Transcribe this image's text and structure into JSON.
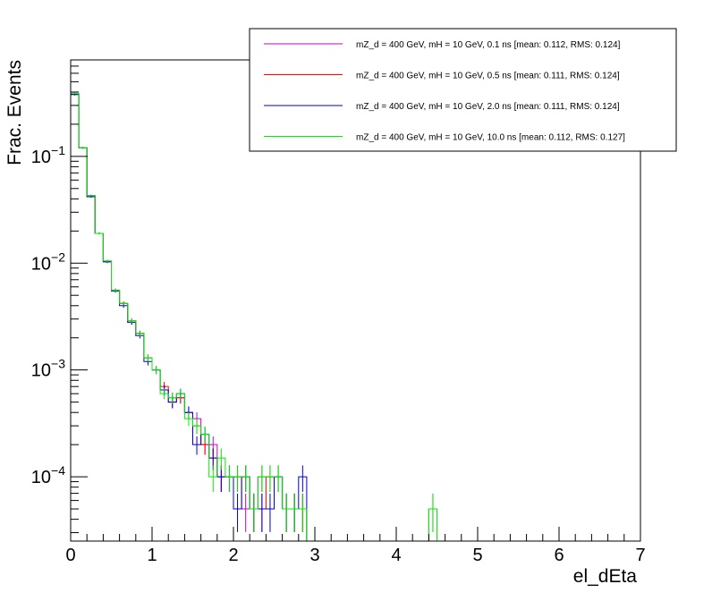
{
  "chart_data": {
    "type": "histogram",
    "xlabel": "el_dEta",
    "ylabel": "Frac. Events",
    "xlim": [
      0,
      7
    ],
    "ylim": [
      2.5e-05,
      0.8
    ],
    "y_scale": "log",
    "x_ticks": [
      "0",
      "1",
      "2",
      "3",
      "4",
      "5",
      "6",
      "7"
    ],
    "y_ticks": [
      {
        "value": 0.0001,
        "base": "10",
        "exp": "−4"
      },
      {
        "value": 0.001,
        "base": "10",
        "exp": "−3"
      },
      {
        "value": 0.01,
        "base": "10",
        "exp": "−2"
      },
      {
        "value": 0.1,
        "base": "10",
        "exp": "−1"
      }
    ],
    "bin_width": 0.1,
    "legend_position": "top-right",
    "series": [
      {
        "name": "mZ_d = 400 GeV, mH = 10 GeV, 0.1 ns [mean: 0.112, RMS: 0.124]",
        "color": "#cc00cc",
        "bins": [
          [
            0.0,
            0.38
          ],
          [
            0.1,
            0.12
          ],
          [
            0.2,
            0.043
          ],
          [
            0.3,
            0.019
          ],
          [
            0.4,
            0.0104
          ],
          [
            0.5,
            0.0056
          ],
          [
            0.6,
            0.0042
          ],
          [
            0.7,
            0.0029
          ],
          [
            0.8,
            0.0022
          ],
          [
            0.9,
            0.0013
          ],
          [
            1.0,
            0.001
          ],
          [
            1.1,
            0.00065
          ],
          [
            1.2,
            0.00055
          ],
          [
            1.3,
            0.00055
          ],
          [
            1.4,
            0.0004
          ],
          [
            1.5,
            0.00035
          ],
          [
            1.6,
            0.0002
          ],
          [
            1.7,
            0.0002
          ],
          [
            1.8,
            0.0001
          ],
          [
            1.9,
            0.0001
          ],
          [
            2.0,
            0.0001
          ],
          [
            2.1,
            5e-05
          ],
          [
            2.2,
            5e-05
          ],
          [
            2.3,
            0.0001
          ],
          [
            2.4,
            0.0001
          ],
          [
            2.5,
            0.0001
          ],
          [
            2.6,
            5e-05
          ],
          [
            2.7,
            5e-05
          ],
          [
            2.8,
            5e-05
          ],
          [
            4.4,
            5e-05
          ]
        ]
      },
      {
        "name": "mZ_d = 400 GeV, mH = 10 GeV, 0.5 ns [mean: 0.111, RMS: 0.124]",
        "color": "#ff0000",
        "bins": [
          [
            0.0,
            0.38
          ],
          [
            0.1,
            0.12
          ],
          [
            0.2,
            0.042
          ],
          [
            0.3,
            0.019
          ],
          [
            0.4,
            0.0103
          ],
          [
            0.5,
            0.0055
          ],
          [
            0.6,
            0.0042
          ],
          [
            0.7,
            0.0028
          ],
          [
            0.8,
            0.0022
          ],
          [
            0.9,
            0.0013
          ],
          [
            1.0,
            0.001
          ],
          [
            1.1,
            0.0007
          ],
          [
            1.2,
            0.0005
          ],
          [
            1.3,
            0.00055
          ],
          [
            1.4,
            0.0004
          ],
          [
            1.5,
            0.0003
          ],
          [
            1.6,
            0.0002
          ],
          [
            1.7,
            0.00015
          ],
          [
            1.8,
            0.0001
          ],
          [
            1.9,
            0.0001
          ],
          [
            2.0,
            0.0001
          ],
          [
            2.1,
            0.0001
          ],
          [
            2.2,
            5e-05
          ],
          [
            2.3,
            5e-05
          ],
          [
            2.4,
            0.0001
          ],
          [
            2.5,
            0.0001
          ],
          [
            2.6,
            5e-05
          ],
          [
            2.7,
            5e-05
          ],
          [
            2.8,
            5e-05
          ]
        ]
      },
      {
        "name": "mZ_d = 400 GeV, mH = 10 GeV, 2.0 ns [mean: 0.111, RMS: 0.124]",
        "color": "#0000cc",
        "bins": [
          [
            0.0,
            0.38
          ],
          [
            0.1,
            0.12
          ],
          [
            0.2,
            0.042
          ],
          [
            0.3,
            0.019
          ],
          [
            0.4,
            0.0103
          ],
          [
            0.5,
            0.0055
          ],
          [
            0.6,
            0.004
          ],
          [
            0.7,
            0.0028
          ],
          [
            0.8,
            0.0021
          ],
          [
            0.9,
            0.0012
          ],
          [
            1.0,
            0.001
          ],
          [
            1.1,
            0.00065
          ],
          [
            1.2,
            0.0005
          ],
          [
            1.3,
            0.0006
          ],
          [
            1.4,
            0.0004
          ],
          [
            1.5,
            0.0002
          ],
          [
            1.6,
            0.00025
          ],
          [
            1.7,
            0.00015
          ],
          [
            1.8,
            0.0001
          ],
          [
            1.9,
            0.0001
          ],
          [
            2.0,
            5e-05
          ],
          [
            2.1,
            0.0001
          ],
          [
            2.2,
            5e-05
          ],
          [
            2.3,
            5e-05
          ],
          [
            2.4,
            5e-05
          ],
          [
            2.5,
            0.0001
          ],
          [
            2.6,
            5e-05
          ],
          [
            2.7,
            5e-05
          ],
          [
            2.8,
            0.0001
          ]
        ]
      },
      {
        "name": "mZ_d = 400 GeV, mH = 10 GeV, 10.0 ns [mean: 0.112, RMS: 0.127]",
        "color": "#00ee00",
        "bins": [
          [
            0.0,
            0.39
          ],
          [
            0.1,
            0.12
          ],
          [
            0.2,
            0.043
          ],
          [
            0.3,
            0.019
          ],
          [
            0.4,
            0.0105
          ],
          [
            0.5,
            0.0056
          ],
          [
            0.6,
            0.0042
          ],
          [
            0.7,
            0.0029
          ],
          [
            0.8,
            0.0022
          ],
          [
            0.9,
            0.0013
          ],
          [
            1.0,
            0.001
          ],
          [
            1.1,
            0.0006
          ],
          [
            1.2,
            0.00055
          ],
          [
            1.3,
            0.0006
          ],
          [
            1.4,
            0.00035
          ],
          [
            1.5,
            0.0003
          ],
          [
            1.6,
            0.00025
          ],
          [
            1.7,
            0.0001
          ],
          [
            1.8,
            0.00015
          ],
          [
            1.9,
            0.0001
          ],
          [
            2.0,
            0.0001
          ],
          [
            2.1,
            0.0001
          ],
          [
            2.2,
            5e-05
          ],
          [
            2.3,
            0.0001
          ],
          [
            2.4,
            0.0001
          ],
          [
            2.5,
            0.0001
          ],
          [
            2.6,
            5e-05
          ],
          [
            2.7,
            5e-05
          ],
          [
            2.8,
            5e-05
          ],
          [
            4.4,
            5e-05
          ]
        ]
      }
    ]
  }
}
